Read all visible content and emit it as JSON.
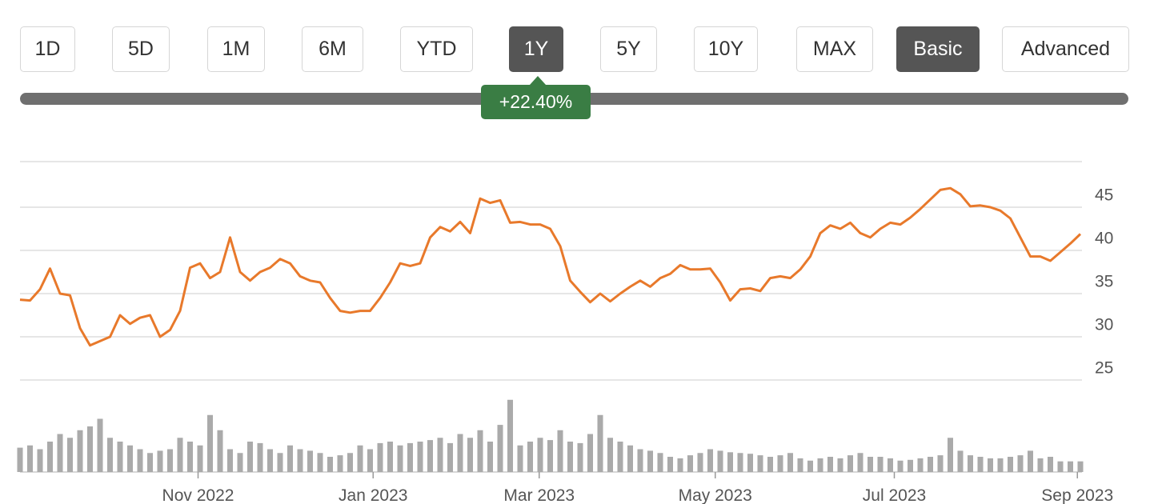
{
  "buttons": [
    {
      "label": "1D",
      "active": false
    },
    {
      "label": "5D",
      "active": false
    },
    {
      "label": "1M",
      "active": false
    },
    {
      "label": "6M",
      "active": false
    },
    {
      "label": "YTD",
      "active": false
    },
    {
      "label": "1Y",
      "active": true
    },
    {
      "label": "5Y",
      "active": false
    },
    {
      "label": "10Y",
      "active": false
    },
    {
      "label": "MAX",
      "active": false
    },
    {
      "label": "Basic",
      "active": true
    },
    {
      "label": "Advanced",
      "active": false
    }
  ],
  "badge": "+22.40%",
  "chart_data": [
    {
      "type": "line",
      "color": "#e8792b",
      "values": [
        34.3,
        34.2,
        35.5,
        37.9,
        35.0,
        34.8,
        31.0,
        29.0,
        29.5,
        30.0,
        32.5,
        31.5,
        32.2,
        32.5,
        30.0,
        30.8,
        33.0,
        38.0,
        38.5,
        36.8,
        37.5,
        41.5,
        37.5,
        36.5,
        37.5,
        38.0,
        39.0,
        38.5,
        37.0,
        36.5,
        36.3,
        34.5,
        33.0,
        32.8,
        33.0,
        33.0,
        34.5,
        36.3,
        38.5,
        38.2,
        38.5,
        41.5,
        42.7,
        42.2,
        43.3,
        42.0,
        46.0,
        45.5,
        45.8,
        43.2,
        43.3,
        43.0,
        43.0,
        42.5,
        40.5,
        36.5,
        35.2,
        34.0,
        35.0,
        34.1,
        35.0,
        35.8,
        36.5,
        35.8,
        36.8,
        37.3,
        38.3,
        37.8,
        37.8,
        37.9,
        36.3,
        34.2,
        35.5,
        35.6,
        35.3,
        36.8,
        37.0,
        36.8,
        37.8,
        39.3,
        42.0,
        42.9,
        42.5,
        43.2,
        42.0,
        41.5,
        42.5,
        43.2,
        43.0,
        43.8,
        44.8,
        45.9,
        47.0,
        47.2,
        46.5,
        45.1,
        45.2,
        45.0,
        44.6,
        43.7,
        41.5,
        39.3,
        39.3,
        38.8,
        39.8,
        40.8,
        41.9
      ],
      "xlim": [
        0,
        106
      ],
      "xticks": [
        {
          "value": 17.8,
          "label": "Nov 2022"
        },
        {
          "value": 35.3,
          "label": "Jan 2023"
        },
        {
          "value": 51.9,
          "label": "Mar 2023"
        },
        {
          "value": 69.5,
          "label": "May 2023"
        },
        {
          "value": 87.4,
          "label": "Jul 2023"
        },
        {
          "value": 105.7,
          "label": "Sep 2023"
        }
      ],
      "ylim": [
        25,
        50
      ],
      "yticks": [
        25,
        30,
        35,
        40,
        45
      ],
      "grid": true
    },
    {
      "type": "bar",
      "color": "#aaaaaa",
      "ylim": [
        0,
        100
      ],
      "values": [
        32,
        35,
        30,
        40,
        50,
        45,
        55,
        60,
        70,
        45,
        40,
        35,
        30,
        25,
        28,
        30,
        45,
        40,
        35,
        75,
        55,
        30,
        25,
        40,
        38,
        30,
        25,
        35,
        30,
        28,
        25,
        20,
        22,
        25,
        35,
        30,
        38,
        40,
        35,
        38,
        40,
        42,
        45,
        38,
        50,
        45,
        55,
        40,
        62,
        95,
        35,
        40,
        45,
        42,
        55,
        40,
        38,
        50,
        75,
        45,
        40,
        35,
        30,
        28,
        25,
        20,
        18,
        22,
        25,
        30,
        28,
        26,
        25,
        24,
        22,
        20,
        22,
        25,
        18,
        15,
        18,
        20,
        18,
        22,
        25,
        20,
        20,
        18,
        15,
        16,
        18,
        20,
        22,
        45,
        28,
        22,
        20,
        18,
        18,
        20,
        22,
        28,
        18,
        20,
        14,
        14,
        14
      ]
    }
  ]
}
